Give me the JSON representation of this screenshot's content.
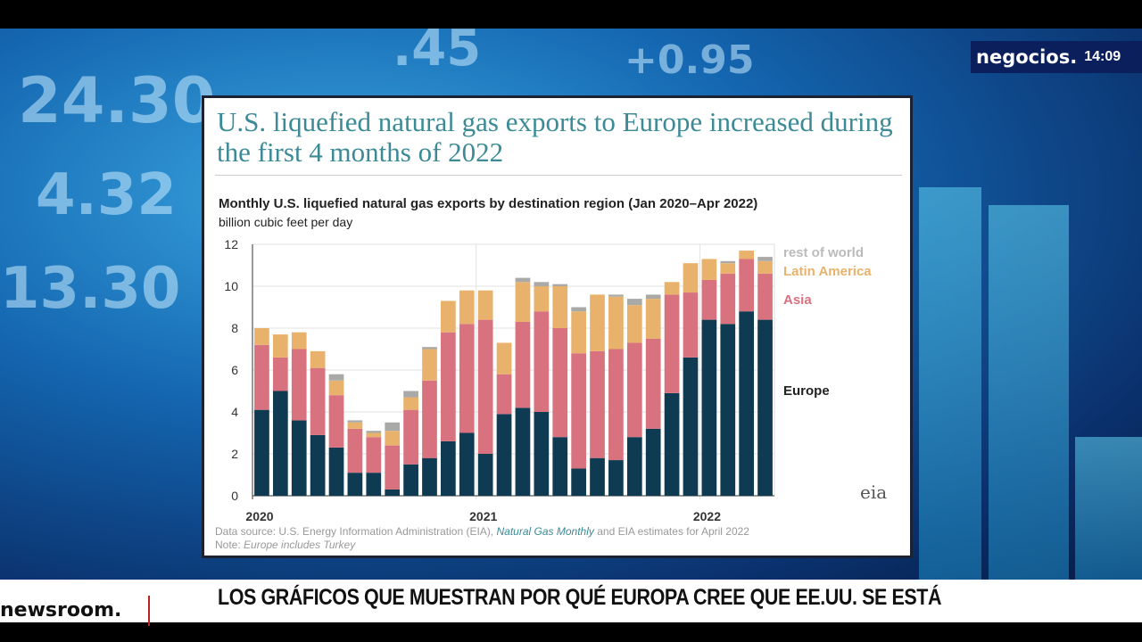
{
  "broadcast": {
    "brand": "negocios.",
    "time": "14:09",
    "logo": "newsroom.",
    "headline": "LOS GRÁFICOS QUE MUESTRAN POR QUÉ EUROPA CREE QUE EE.UU. SE ESTÁ",
    "background_numbers": [
      "24.30",
      "4.32",
      "13.30",
      ".45",
      "+0.95"
    ]
  },
  "chart_data": {
    "type": "bar",
    "stacked": true,
    "title": "U.S. liquefied natural gas exports to Europe increased during the first 4 months of 2022",
    "subtitle": "Monthly U.S. liquefied natural gas exports by destination region (Jan 2020–Apr 2022)",
    "ylabel": "billion cubic feet per day",
    "ylim": [
      0,
      12
    ],
    "yticks": [
      "0",
      "2",
      "4",
      "6",
      "8",
      "10",
      "12"
    ],
    "xticks": [
      "2020",
      "2021",
      "2022"
    ],
    "grid": true,
    "legend": "right",
    "categories": [
      "Jan 2020",
      "Feb 2020",
      "Mar 2020",
      "Apr 2020",
      "May 2020",
      "Jun 2020",
      "Jul 2020",
      "Aug 2020",
      "Sep 2020",
      "Oct 2020",
      "Nov 2020",
      "Dec 2020",
      "Jan 2021",
      "Feb 2021",
      "Mar 2021",
      "Apr 2021",
      "May 2021",
      "Jun 2021",
      "Jul 2021",
      "Aug 2021",
      "Sep 2021",
      "Oct 2021",
      "Nov 2021",
      "Dec 2021",
      "Jan 2022",
      "Feb 2022",
      "Mar 2022",
      "Apr 2022"
    ],
    "series": [
      {
        "name": "Europe",
        "color": "#0e3a52",
        "values": [
          4.1,
          5.0,
          3.6,
          2.9,
          2.3,
          1.1,
          1.1,
          0.3,
          1.5,
          1.8,
          2.6,
          3.0,
          2.0,
          3.9,
          4.2,
          4.0,
          2.8,
          1.3,
          1.8,
          1.7,
          2.8,
          3.2,
          4.9,
          6.6,
          8.4,
          8.2,
          8.8,
          8.4
        ]
      },
      {
        "name": "Asia",
        "color": "#d9727f",
        "values": [
          3.1,
          1.6,
          3.4,
          3.2,
          2.5,
          2.1,
          1.7,
          2.1,
          2.6,
          3.7,
          5.2,
          5.2,
          6.4,
          1.9,
          4.1,
          4.8,
          5.2,
          5.5,
          5.1,
          5.3,
          4.5,
          4.3,
          4.7,
          3.1,
          1.9,
          2.4,
          2.5,
          2.2
        ]
      },
      {
        "name": "Latin America",
        "color": "#e9b26c",
        "values": [
          0.8,
          1.1,
          0.8,
          0.8,
          0.7,
          0.3,
          0.2,
          0.7,
          0.6,
          1.5,
          1.5,
          1.6,
          1.4,
          1.5,
          1.9,
          1.2,
          2.0,
          2.0,
          2.7,
          2.5,
          1.8,
          1.9,
          0.6,
          1.4,
          1.0,
          0.5,
          0.4,
          0.6
        ]
      },
      {
        "name": "rest of world",
        "color": "#a9aaa8",
        "values": [
          0,
          0,
          0,
          0,
          0.3,
          0.1,
          0.1,
          0.4,
          0.3,
          0.1,
          0,
          0,
          0,
          0,
          0.2,
          0.2,
          0.1,
          0.2,
          0,
          0.1,
          0.3,
          0.2,
          0,
          0,
          0,
          0.1,
          0,
          0.2
        ]
      }
    ],
    "source_prefix": "Data source: U.S. Energy Information Administration (EIA),",
    "source_italic": "Natural Gas Monthly",
    "source_suffix": "and EIA estimates for April 2022",
    "note_prefix": "Note:",
    "note_italic": "Europe includes Turkey",
    "logo": "eia"
  }
}
